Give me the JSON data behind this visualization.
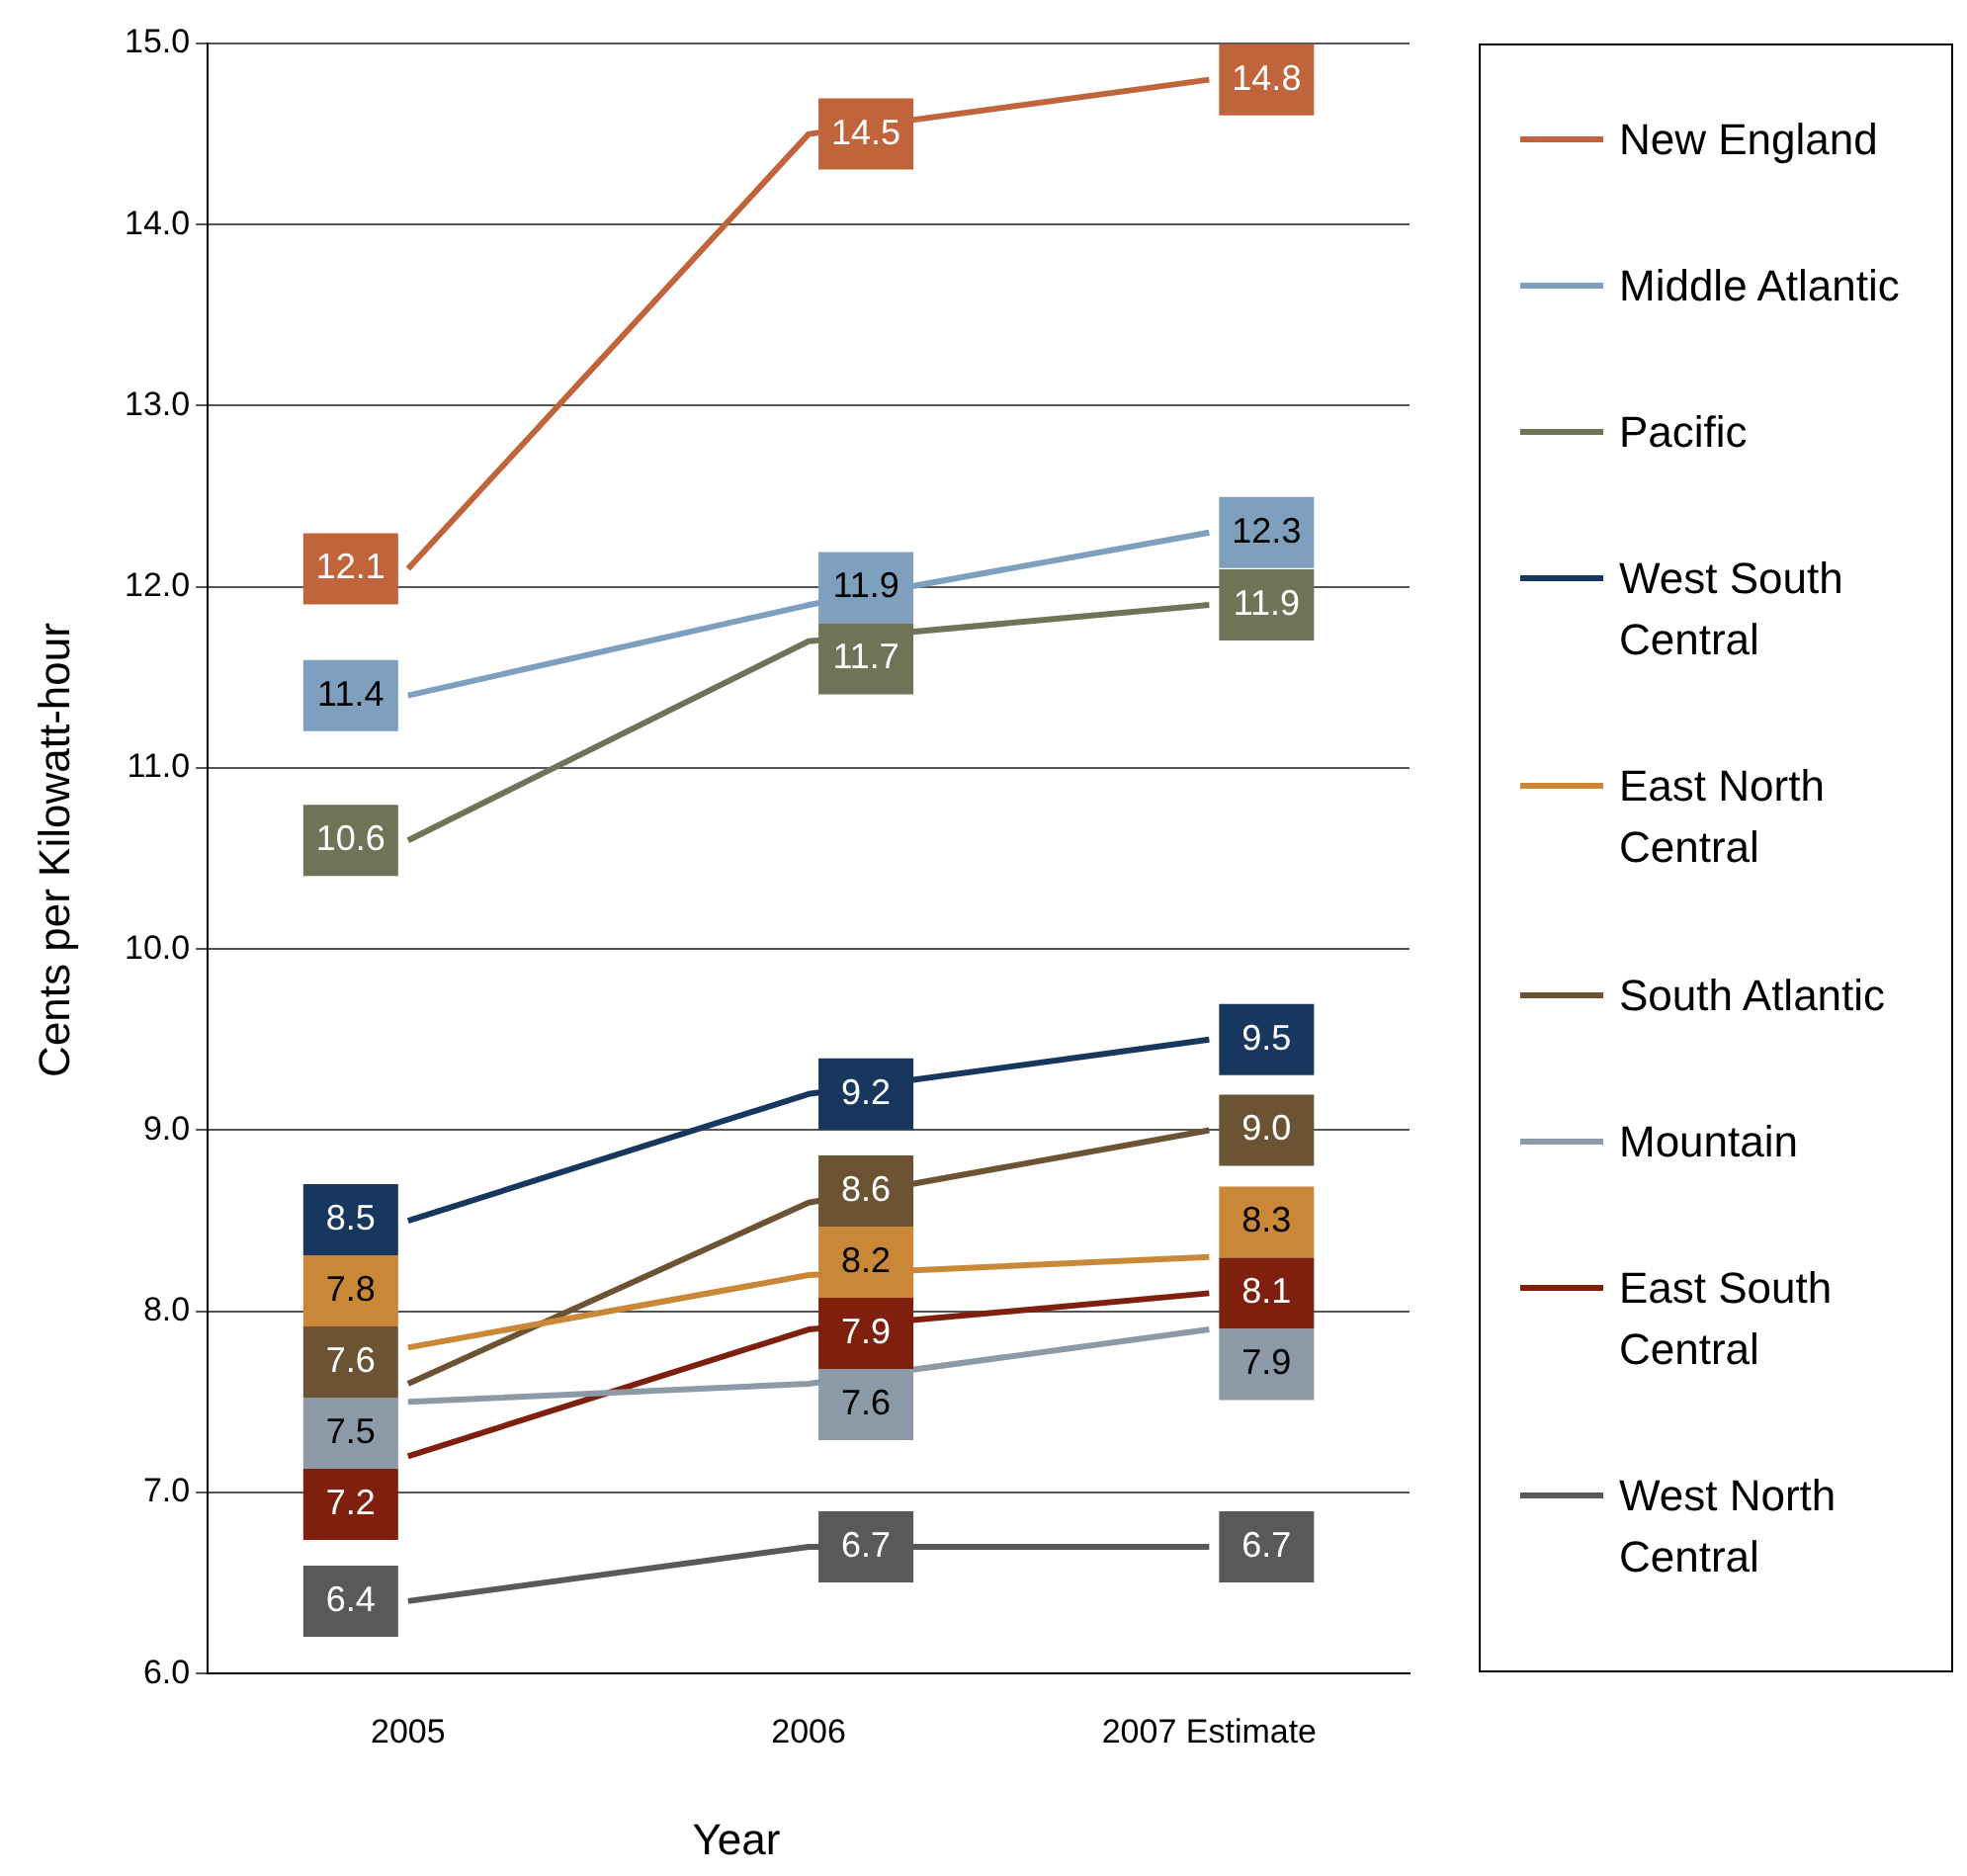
{
  "chart_data": {
    "type": "line",
    "xlabel": "Year",
    "ylabel": "Cents per Kilowatt-hour",
    "categories": [
      "2005",
      "2006",
      "2007 Estimate"
    ],
    "series": [
      {
        "name": "New England",
        "color": "#c0643c",
        "values": [
          12.1,
          14.5,
          14.8
        ],
        "value_labels": [
          "12.1",
          "14.5",
          "14.8"
        ]
      },
      {
        "name": "Middle Atlantic",
        "color": "#7f9fbf",
        "values": [
          11.4,
          11.9,
          12.3
        ],
        "value_labels": [
          "11.4",
          "11.9",
          "12.3"
        ]
      },
      {
        "name": "Pacific",
        "color": "#6f7456",
        "values": [
          10.6,
          11.7,
          11.9
        ],
        "value_labels": [
          "10.6",
          "11.7",
          "11.9"
        ]
      },
      {
        "name": "West South Central",
        "color": "#17375e",
        "values": [
          8.5,
          9.2,
          9.5
        ],
        "value_labels": [
          "8.5",
          "9.2",
          "9.5"
        ]
      },
      {
        "name": "East North Central",
        "color": "#c98737",
        "values": [
          7.8,
          8.2,
          8.3
        ],
        "value_labels": [
          "7.8",
          "8.2",
          "8.3"
        ]
      },
      {
        "name": "South Atlantic",
        "color": "#6b5333",
        "values": [
          7.6,
          8.6,
          9.0
        ],
        "value_labels": [
          "7.6",
          "8.6",
          "9.0"
        ]
      },
      {
        "name": "Mountain",
        "color": "#8c99a6",
        "values": [
          7.5,
          7.6,
          7.9
        ],
        "value_labels": [
          "7.5",
          "7.6",
          "7.9"
        ]
      },
      {
        "name": "East South Central",
        "color": "#7f1f0d",
        "values": [
          7.2,
          7.9,
          8.1
        ],
        "value_labels": [
          "7.2",
          "7.9",
          "8.1"
        ]
      },
      {
        "name": "West North Central",
        "color": "#595959",
        "values": [
          6.4,
          6.7,
          6.7
        ],
        "value_labels": [
          "6.4",
          "6.7",
          "6.7"
        ]
      }
    ],
    "ylim": [
      6,
      15
    ],
    "yticks": [
      {
        "value": 6,
        "label": "6.0"
      },
      {
        "value": 7,
        "label": "7.0"
      },
      {
        "value": 8,
        "label": "8.0"
      },
      {
        "value": 9,
        "label": "9.0"
      },
      {
        "value": 10,
        "label": "10.0"
      },
      {
        "value": 11,
        "label": "11.0"
      },
      {
        "value": 12,
        "label": "12.0"
      },
      {
        "value": 13,
        "label": "13.0"
      },
      {
        "value": 14,
        "label": "14.0"
      },
      {
        "value": 15,
        "label": "15.0"
      }
    ],
    "grid": "y",
    "legend": "right",
    "marker": "none",
    "line_style": "solid",
    "data_labels": true
  }
}
